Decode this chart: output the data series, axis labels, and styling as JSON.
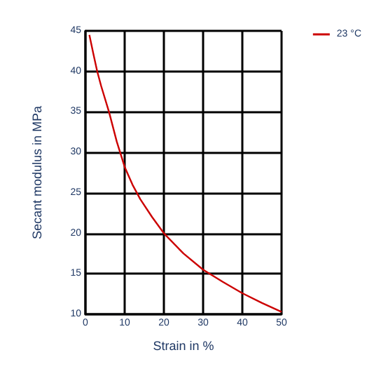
{
  "chart_data": {
    "type": "line",
    "xlabel": "Strain in %",
    "ylabel": "Secant modulus in MPa",
    "series": [
      {
        "name": "23 °C",
        "color": "#cc0000",
        "x": [
          1,
          2,
          3,
          4,
          6,
          8,
          10,
          12,
          14,
          17,
          20,
          25,
          30,
          35,
          40,
          45,
          50
        ],
        "values": [
          44.5,
          42.2,
          40,
          38.2,
          35,
          31.3,
          28.2,
          26,
          24.2,
          22,
          20,
          17.5,
          15.5,
          14,
          12.6,
          11.4,
          10.3
        ]
      }
    ],
    "xlim": [
      0,
      50
    ],
    "xticks": [
      0,
      10,
      20,
      30,
      40,
      50
    ],
    "ylim": [
      10,
      45
    ],
    "yticks": [
      10,
      15,
      20,
      25,
      30,
      35,
      40,
      45
    ],
    "grid": true,
    "legend": "top right",
    "marker": "none",
    "line_style": "solid"
  }
}
